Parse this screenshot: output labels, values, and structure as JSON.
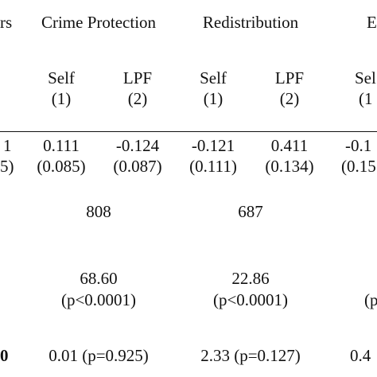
{
  "header": {
    "left_cut": "rs",
    "groups": [
      "Crime Protection",
      "Redistribution",
      "E"
    ],
    "columns": [
      "Self",
      "LPF",
      "Self",
      "LPF",
      "Sel"
    ],
    "numbers": [
      "(1)",
      "(2)",
      "(1)",
      "(2)",
      "(1"
    ]
  },
  "rows": [
    [
      "1",
      "0.111",
      "-0.124",
      "-0.121",
      "0.411",
      "-0.1"
    ],
    [
      "5)",
      "(0.085)",
      "(0.087)",
      "(0.111)",
      "(0.134)",
      "(0.15"
    ],
    [
      "808",
      "687"
    ],
    [
      "68.60",
      "22.86"
    ],
    [
      "(p<0.0001)",
      "(p<0.0001)",
      "(p"
    ],
    [
      "0",
      "0.01 (p=0.925)",
      "2.33 (p=0.127)",
      "0.4"
    ]
  ]
}
